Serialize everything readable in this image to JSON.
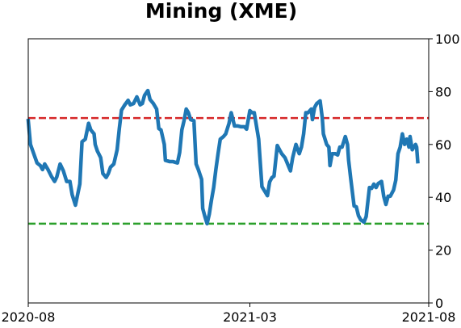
{
  "chart_data": {
    "type": "line",
    "title": "Mining (XME)",
    "x": [
      0,
      2,
      5,
      8,
      11,
      13,
      15,
      18,
      21,
      24,
      26,
      29,
      32,
      35,
      38,
      40,
      43,
      45,
      47,
      49,
      52,
      55,
      57,
      60,
      61,
      63,
      66,
      68,
      71,
      73,
      75,
      78,
      81,
      83,
      85,
      88,
      91,
      93,
      96,
      99,
      102,
      104,
      106,
      109,
      111,
      114,
      117,
      119,
      121,
      124,
      125,
      129,
      132,
      136,
      138,
      140,
      142,
      144,
      146,
      148,
      151,
      153,
      155,
      158,
      159,
      161,
      163,
      165,
      167,
      169,
      171,
      173,
      175,
      178,
      180,
      183,
      185,
      188,
      191,
      194,
      197,
      199,
      202,
      204,
      206,
      208,
      210,
      213,
      216,
      218,
      220,
      222,
      224,
      227,
      229,
      231,
      234,
      237,
      239,
      241,
      244,
      247,
      249,
      251,
      253,
      255,
      258,
      259,
      261,
      263,
      266,
      268,
      269,
      272,
      274,
      275,
      277,
      280,
      282,
      284,
      286,
      289,
      291,
      292,
      294,
      297,
      299,
      301,
      303,
      306,
      308,
      311,
      313,
      315,
      317,
      319,
      322,
      324,
      326,
      328,
      330,
      333,
      335,
      337,
      339,
      341,
      343,
      345,
      347,
      348,
      350,
      353,
      354,
      355
    ],
    "series": [
      {
        "color": "#1f77b4",
        "values": [
          69,
          60,
          56.5,
          53,
          52,
          50.5,
          52.6,
          50.5,
          48,
          46,
          47.7,
          52.6,
          50,
          46,
          46,
          41,
          37,
          41,
          45,
          61,
          62,
          68,
          65.5,
          64,
          60,
          57.5,
          55,
          49,
          47.5,
          49,
          51.4,
          52.6,
          58,
          66,
          73,
          75,
          76.7,
          75,
          75.5,
          78,
          75,
          75.5,
          78.6,
          80.4,
          77,
          75.5,
          73.4,
          66,
          65.5,
          60,
          54,
          53.5,
          53.5,
          53,
          57,
          65.5,
          69,
          73.4,
          72,
          69.4,
          69,
          52.6,
          50.5,
          46.8,
          35.8,
          32.7,
          30,
          33.6,
          39,
          43.7,
          50.5,
          56.5,
          62,
          63,
          64,
          68,
          72,
          67,
          67,
          66.7,
          66.7,
          65.8,
          72.8,
          72,
          72,
          67,
          62,
          44,
          42,
          40.6,
          45.8,
          47.4,
          48,
          59.6,
          58,
          56.5,
          55,
          52,
          50,
          55,
          60,
          56.5,
          59,
          64,
          72,
          72,
          73.4,
          69.4,
          74,
          75.5,
          76.5,
          70,
          64,
          60,
          59,
          52,
          56.5,
          56.5,
          56,
          59,
          59,
          63,
          60,
          54,
          46.8,
          36.7,
          36.4,
          33,
          31.5,
          30.6,
          32.7,
          43.7,
          43.4,
          45,
          43.7,
          45.2,
          46,
          40.4,
          37.3,
          40.4,
          40.4,
          42.8,
          46.5,
          56.5,
          59,
          64,
          60,
          62,
          59,
          63,
          58,
          60,
          59,
          53.5
        ]
      }
    ],
    "xlim": [
      0,
      365
    ],
    "xticks": [
      {
        "value": 0,
        "label": "2020-08"
      },
      {
        "value": 202,
        "label": "2021-03"
      },
      {
        "value": 365,
        "label": "2021-08"
      }
    ],
    "ylim": [
      0,
      100
    ],
    "yticks": [
      0,
      20,
      40,
      60,
      80,
      100
    ],
    "y_axis_side": "right",
    "hlines": [
      {
        "value": 70,
        "color": "#d62728"
      },
      {
        "value": 30,
        "color": "#2ca02c"
      }
    ]
  }
}
